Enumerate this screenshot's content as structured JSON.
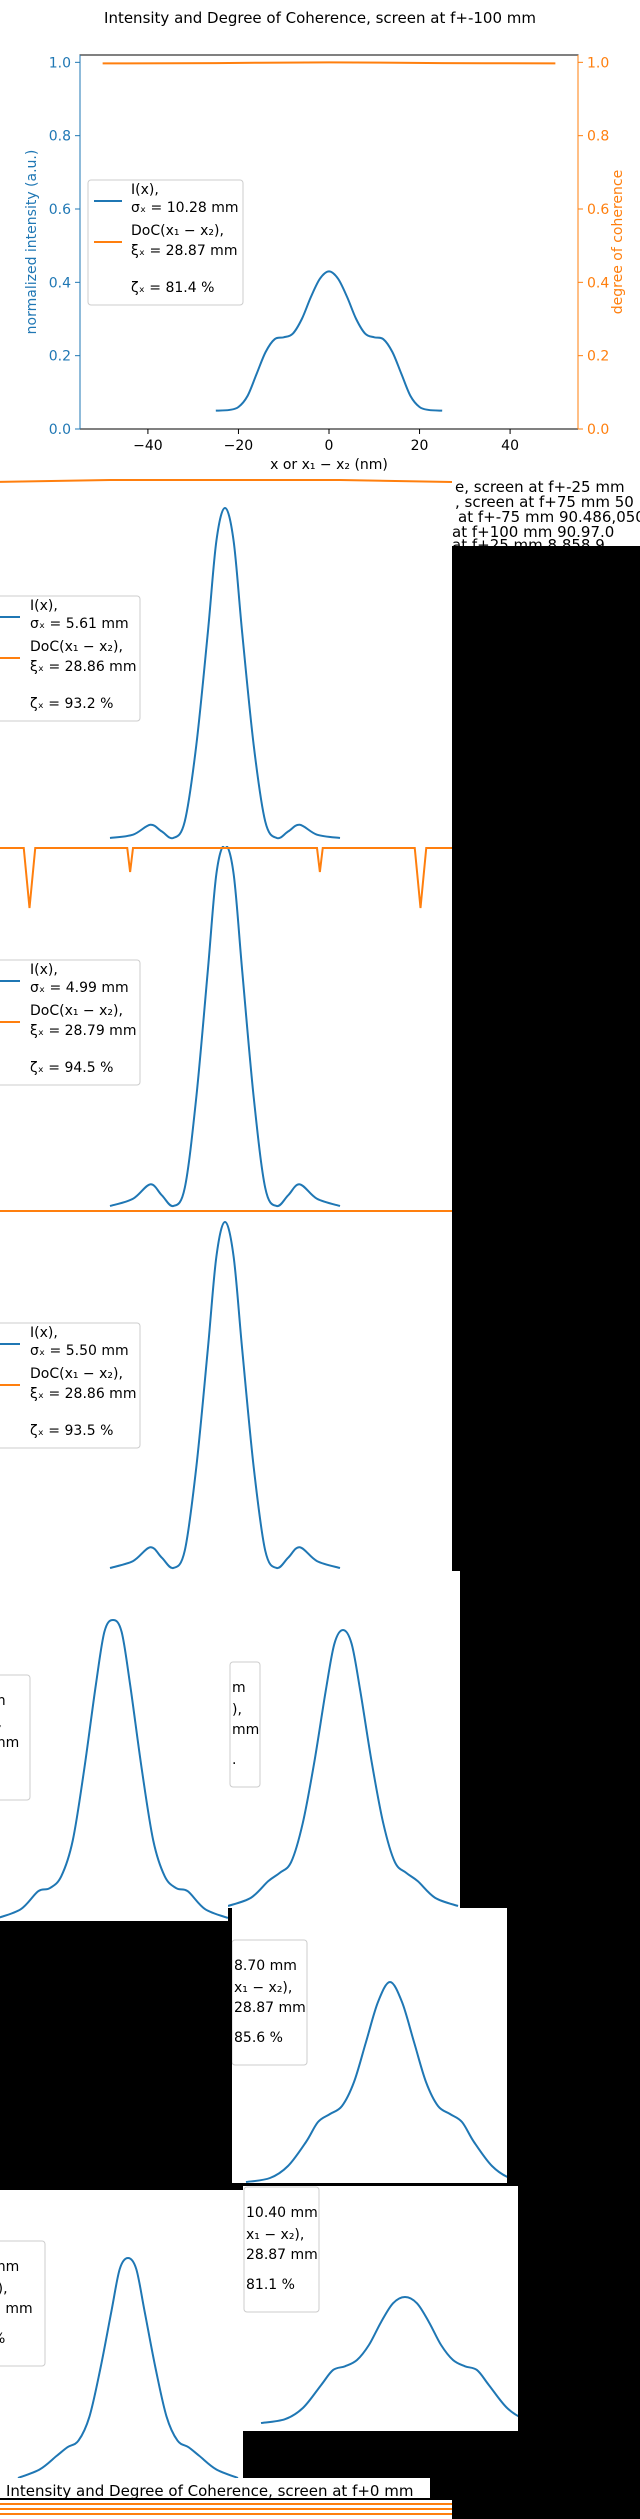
{
  "colors": {
    "intensity": "#1f77b4",
    "coherence": "#ff7f0e",
    "background": "#000000",
    "panel": "#ffffff"
  },
  "chart_data": [
    {
      "type": "line",
      "title": "Intensity and Degree of Coherence, screen at f+-100 mm",
      "xlabel": "x or x₁ − x₂ (nm)",
      "ylabel_left": "normalized intensity (a.u.)",
      "ylabel_right": "degree of coherence",
      "xlim": [
        -55,
        55
      ],
      "ylim": [
        0,
        1.02
      ],
      "xticks": [
        "−40",
        "−20",
        "0",
        "20",
        "40"
      ],
      "yticks_left": [
        "0.0",
        "0.2",
        "0.4",
        "0.6",
        "0.8",
        "1.0"
      ],
      "yticks_right": [
        "0.0",
        "0.2",
        "0.4",
        "0.6",
        "0.8",
        "1.0"
      ],
      "legend": {
        "placement": "center-left",
        "entries": [
          "I(x),",
          "σₓ = 10.28 mm",
          "DoC(x₁ − x₂),",
          "ξₓ = 28.87 mm",
          "ζₓ = 81.4 %"
        ]
      },
      "series": [
        {
          "name": "I(x)",
          "x": [
            -25,
            -22,
            -20,
            -18,
            -16,
            -14,
            -12,
            -10,
            -8,
            -6,
            -4,
            -2,
            0,
            2,
            4,
            6,
            8,
            10,
            12,
            14,
            16,
            18,
            20,
            22,
            25
          ],
          "y": [
            0.05,
            0.052,
            0.06,
            0.09,
            0.15,
            0.21,
            0.245,
            0.25,
            0.26,
            0.3,
            0.36,
            0.41,
            0.43,
            0.41,
            0.36,
            0.3,
            0.26,
            0.25,
            0.245,
            0.21,
            0.15,
            0.09,
            0.06,
            0.052,
            0.05
          ]
        },
        {
          "name": "DoC(x₁ − x₂)",
          "x": [
            -50,
            -25,
            0,
            25,
            50
          ],
          "y": [
            0.997,
            0.998,
            1.0,
            0.998,
            0.997
          ]
        }
      ]
    },
    {
      "type": "line",
      "title": "e, screen at f+-25 mm",
      "legend": {
        "placement": "center-left",
        "entries": [
          "I(x),",
          "σₓ = 5.61 mm",
          "DoC(x₁ − x₂),",
          "ξₓ = 28.86 mm",
          "ζₓ = 93.2 %"
        ]
      },
      "series": [
        {
          "name": "I(x)",
          "x": [
            -20,
            -16,
            -13,
            -11,
            -9,
            -7,
            -5,
            -3,
            -1.5,
            0,
            1.5,
            3,
            5,
            7,
            9,
            11,
            13,
            16,
            20
          ],
          "y": [
            0.0,
            0.01,
            0.04,
            0.02,
            0.0,
            0.05,
            0.28,
            0.62,
            0.9,
            1.0,
            0.9,
            0.62,
            0.28,
            0.05,
            0.0,
            0.02,
            0.04,
            0.01,
            0.0
          ]
        },
        {
          "name": "DoC(x₁ − x₂)",
          "x": [
            -40,
            -20,
            0,
            20,
            40
          ],
          "y": [
            0.99,
            1.0,
            1.0,
            1.0,
            0.99
          ]
        }
      ]
    },
    {
      "type": "line",
      "title": ", screen at f+75 mm",
      "legend": {
        "placement": "center-left",
        "entries": [
          "I(x),",
          "σₓ = 4.99 mm",
          "DoC(x₁ − x₂),",
          "ξₓ = 28.79 mm",
          "ζₓ = 94.5 %"
        ]
      },
      "series": [
        {
          "name": "I(x)",
          "x": [
            -20,
            -16,
            -13,
            -11,
            -9,
            -7,
            -5,
            -3,
            -1.5,
            0,
            1.5,
            3,
            5,
            7,
            9,
            11,
            13,
            16,
            20
          ],
          "y": [
            0.0,
            0.02,
            0.06,
            0.03,
            0.0,
            0.05,
            0.3,
            0.65,
            0.92,
            1.0,
            0.92,
            0.65,
            0.3,
            0.05,
            0.0,
            0.03,
            0.06,
            0.02,
            0.0
          ]
        },
        {
          "name": "DoC(x₁ − x₂)",
          "x": [
            -40,
            -35,
            -34,
            -33,
            -20,
            -17,
            -16.5,
            -16,
            -1,
            0,
            1,
            16,
            16.5,
            17,
            33,
            34,
            35,
            40
          ],
          "y": [
            1.0,
            1.0,
            0.7,
            1.0,
            1.0,
            1.0,
            0.88,
            1.0,
            1.0,
            1.0,
            1.0,
            1.0,
            0.88,
            1.0,
            1.0,
            0.7,
            1.0,
            1.0
          ]
        }
      ]
    },
    {
      "type": "line",
      "title": "at f+-75 mm",
      "legend": {
        "placement": "center-left",
        "entries": [
          "I(x),",
          "σₓ = 5.50 mm",
          "DoC(x₁ − x₂),",
          "ξₓ = 28.86 mm",
          "ζₓ = 93.5 %"
        ]
      },
      "series": [
        {
          "name": "I(x)",
          "x": [
            -20,
            -16,
            -13,
            -11,
            -9,
            -7,
            -5,
            -3,
            -1.5,
            0,
            1.5,
            3,
            5,
            7,
            9,
            11,
            13,
            16,
            20
          ],
          "y": [
            0.0,
            0.02,
            0.06,
            0.03,
            0.0,
            0.05,
            0.29,
            0.63,
            0.9,
            1.0,
            0.9,
            0.63,
            0.29,
            0.05,
            0.0,
            0.03,
            0.06,
            0.02,
            0.0
          ]
        },
        {
          "name": "DoC(x₁ − x₂)",
          "x": [
            -40,
            0,
            40
          ],
          "y": [
            1.0,
            1.0,
            1.0
          ]
        }
      ]
    },
    {
      "type": "line",
      "title": "at f+100 mm",
      "legend": {
        "placement": "center-left",
        "entries": [
          "m",
          "),",
          "mm",
          "."
        ]
      },
      "series": [
        {
          "name": "I(x)",
          "x": [
            -20,
            -16,
            -13,
            -11,
            -9,
            -7,
            -5,
            -3,
            -1.5,
            0,
            1.5,
            3,
            5,
            7,
            9,
            11,
            13,
            16,
            20
          ],
          "y": [
            0.0,
            0.03,
            0.09,
            0.1,
            0.14,
            0.26,
            0.5,
            0.78,
            0.96,
            1.0,
            0.96,
            0.78,
            0.5,
            0.26,
            0.14,
            0.1,
            0.09,
            0.03,
            0.0
          ]
        }
      ]
    },
    {
      "type": "line",
      "title": "at f+25 mm",
      "legend": {
        "placement": "center-left",
        "entries": [
          "m",
          "),",
          "mm",
          "."
        ]
      },
      "series": [
        {
          "name": "I(x)",
          "x": [
            -20,
            -16,
            -13,
            -11,
            -9,
            -7,
            -5,
            -3,
            -1.5,
            0,
            1.5,
            3,
            5,
            7,
            9,
            11,
            13,
            16,
            20
          ],
          "y": [
            0.0,
            0.03,
            0.09,
            0.12,
            0.16,
            0.3,
            0.52,
            0.78,
            0.95,
            1.0,
            0.95,
            0.78,
            0.52,
            0.3,
            0.16,
            0.12,
            0.09,
            0.03,
            0.0
          ]
        }
      ]
    },
    {
      "type": "line",
      "title": "",
      "legend": {
        "placement": "center-left",
        "entries": [
          "8.70 mm",
          "x₁ − x₂),",
          "28.87 mm",
          "85.6 %"
        ]
      },
      "series": [
        {
          "name": "I(x)",
          "x": [
            -24,
            -20,
            -17,
            -14,
            -12,
            -10,
            -8,
            -6,
            -4,
            -2,
            0,
            2,
            4,
            6,
            8,
            10,
            12,
            14,
            17,
            20,
            24
          ],
          "y": [
            0.0,
            0.02,
            0.08,
            0.2,
            0.3,
            0.34,
            0.38,
            0.5,
            0.7,
            0.9,
            1.0,
            0.9,
            0.7,
            0.5,
            0.38,
            0.34,
            0.3,
            0.2,
            0.08,
            0.02,
            0.0
          ]
        }
      ]
    },
    {
      "type": "line",
      "title": "",
      "legend": {
        "placement": "center-left",
        "entries": [
          "mm",
          "₂),",
          "7 mm",
          "%"
        ]
      },
      "series": [
        {
          "name": "I(x)",
          "x": [
            -20,
            -16,
            -13,
            -11,
            -9,
            -7,
            -5,
            -3,
            -1.5,
            0,
            1.5,
            3,
            5,
            7,
            9,
            11,
            13,
            16,
            20
          ],
          "y": [
            0.0,
            0.04,
            0.1,
            0.14,
            0.17,
            0.28,
            0.5,
            0.76,
            0.95,
            1.0,
            0.95,
            0.76,
            0.5,
            0.28,
            0.17,
            0.14,
            0.1,
            0.04,
            0.0
          ]
        }
      ]
    },
    {
      "type": "line",
      "title": "",
      "legend": {
        "placement": "center-left",
        "entries": [
          "10.40 mm",
          "x₁ − x₂),",
          "28.87 mm",
          "81.1 %"
        ]
      },
      "series": [
        {
          "name": "I(x)",
          "x": [
            -24,
            -20,
            -17,
            -14,
            -12,
            -10,
            -8,
            -6,
            -4,
            -2,
            0,
            2,
            4,
            6,
            8,
            10,
            12,
            14,
            17,
            20,
            24
          ],
          "y": [
            0.0,
            0.03,
            0.12,
            0.3,
            0.42,
            0.45,
            0.5,
            0.62,
            0.8,
            0.95,
            1.0,
            0.95,
            0.8,
            0.62,
            0.5,
            0.45,
            0.42,
            0.3,
            0.12,
            0.03,
            0.0
          ]
        }
      ]
    },
    {
      "type": "line",
      "title": "Intensity and Degree of Coherence, screen at f+0 mm"
    }
  ],
  "overlay_titles": [
    "e, screen at f+-25 mm",
    ", screen at f+75 mm 50",
    "at f+-75 mm 90.486,050",
    "at f+100 mm 90.97.0",
    "at f+25 mm 8.858.9"
  ]
}
